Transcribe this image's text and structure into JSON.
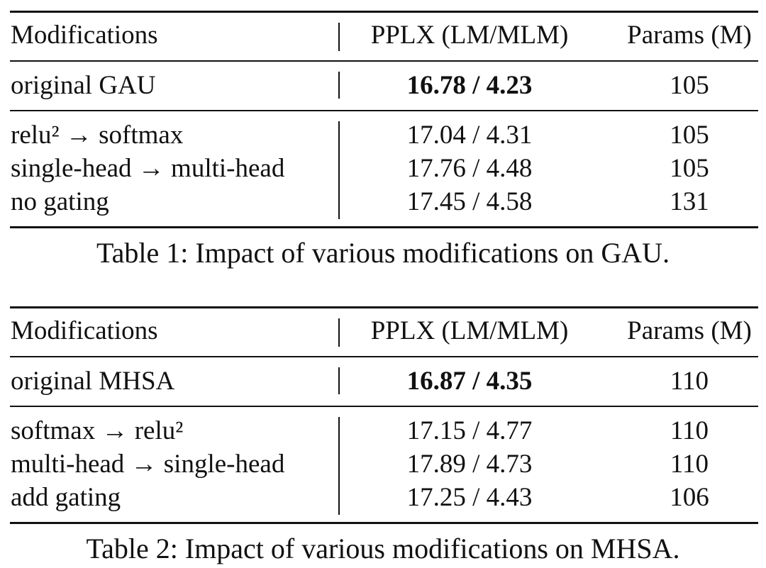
{
  "tables": [
    {
      "header": [
        "Modifications",
        "PPLX (LM/MLM)",
        "Params (M)"
      ],
      "baseline": [
        "original GAU",
        "16.78 / 4.23",
        105
      ],
      "rows": [
        [
          "relu² → softmax",
          "17.04 / 4.31",
          105
        ],
        [
          "single-head → multi-head",
          "17.76 / 4.48",
          105
        ],
        [
          "no gating",
          "17.45 / 4.58",
          131
        ]
      ],
      "caption": "Table 1: Impact of various modifications on GAU."
    },
    {
      "header": [
        "Modifications",
        "PPLX (LM/MLM)",
        "Params (M)"
      ],
      "baseline": [
        "original MHSA",
        "16.87 / 4.35",
        110
      ],
      "rows": [
        [
          "softmax → relu²",
          "17.15 / 4.77",
          110
        ],
        [
          "multi-head → single-head",
          "17.89 / 4.73",
          110
        ],
        [
          "add gating",
          "17.25 / 4.43",
          106
        ]
      ],
      "caption": "Table 2: Impact of various modifications on MHSA."
    }
  ]
}
